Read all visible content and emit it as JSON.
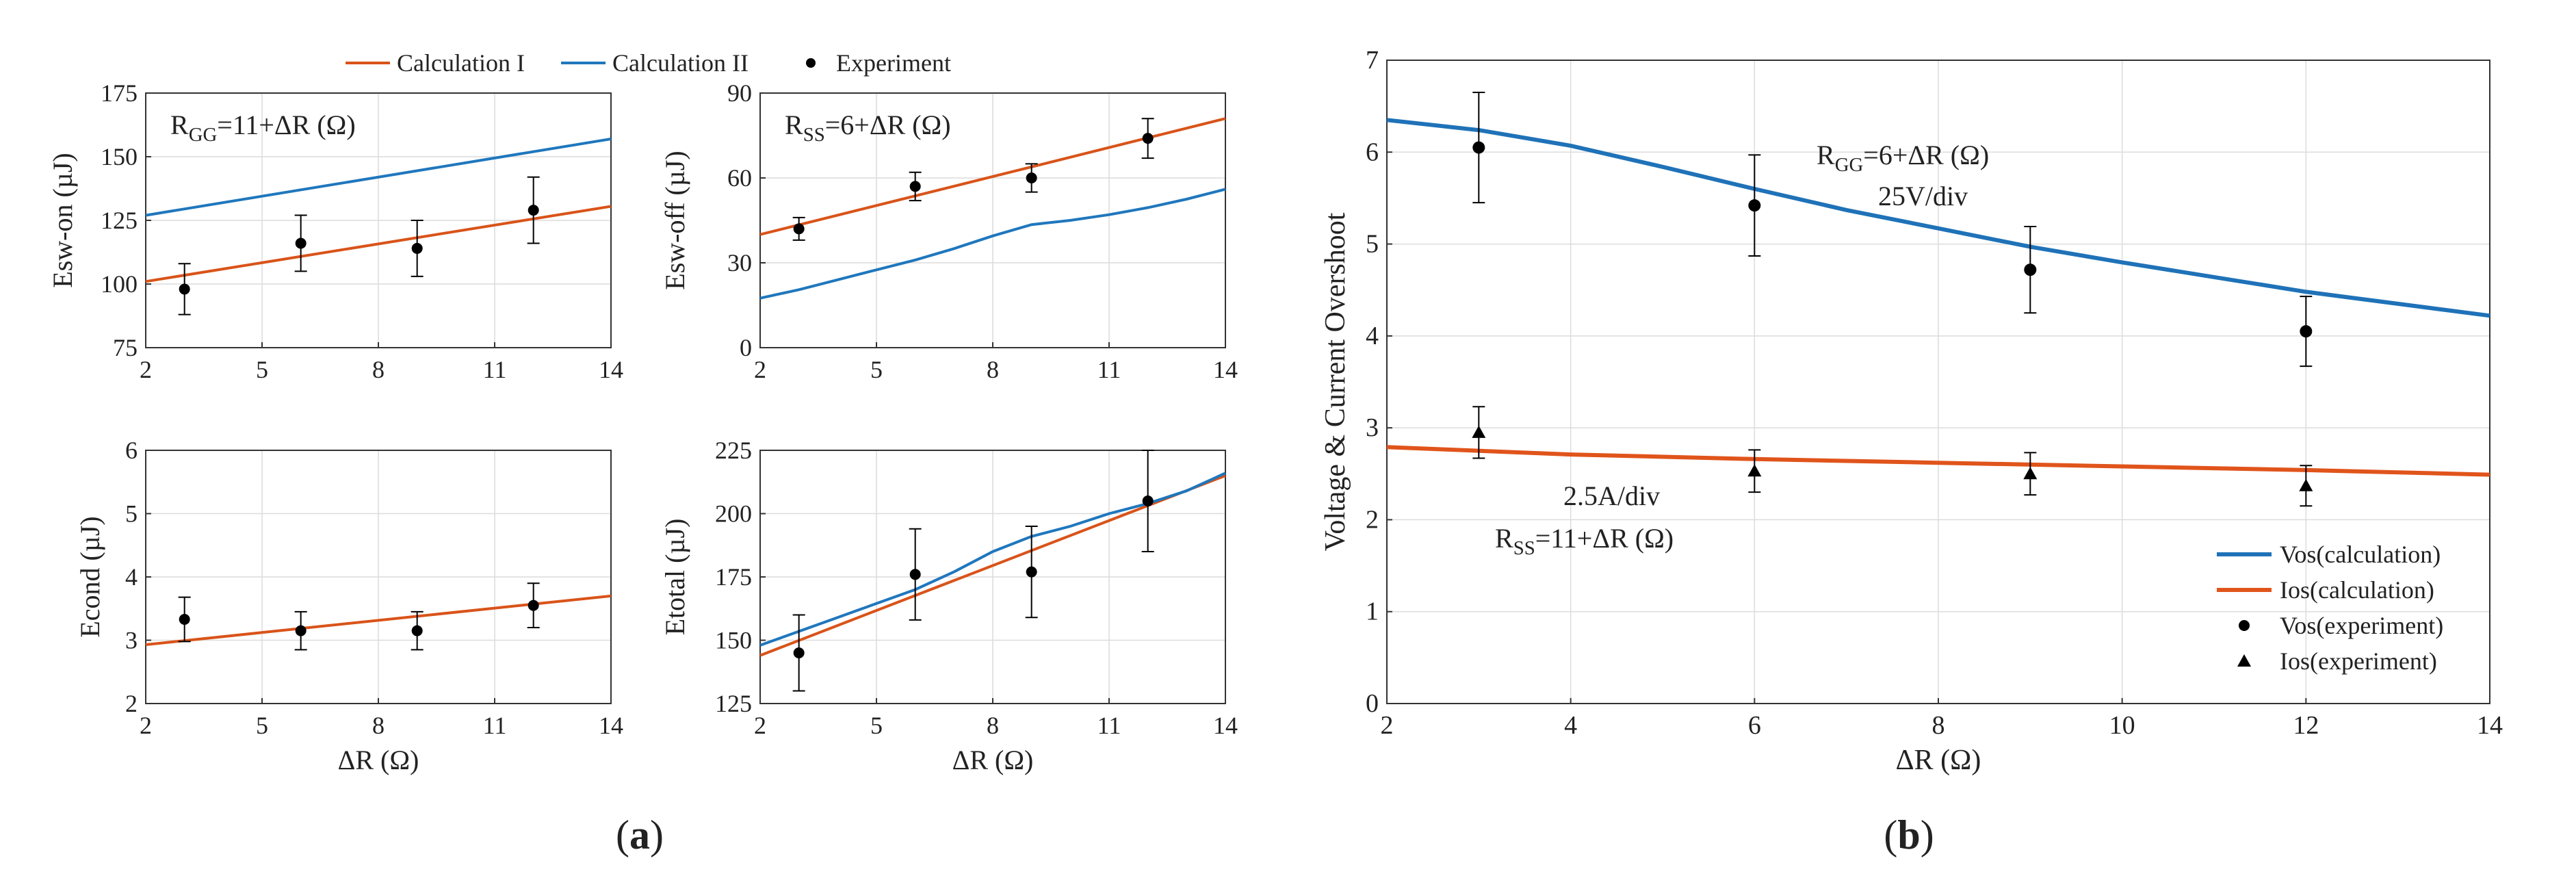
{
  "colors": {
    "calc1": "#d95319",
    "calc2": "#1f77bd",
    "vos_calc": "#1f72b8",
    "ios_calc": "#e0541b",
    "grid": "#dcdcdc",
    "axis": "#333333",
    "experiment": "#000000"
  },
  "legend_a": {
    "items": [
      "Calculation I",
      "Calculation II",
      "Experiment"
    ]
  },
  "captions": {
    "a": "(a)",
    "b": "(b)",
    "a_letter": "a",
    "b_letter": "b"
  },
  "chart_data": [
    {
      "id": "esw_on",
      "type": "line",
      "xlabel": "",
      "ylabel": "Esw-on (µJ)",
      "xlim": [
        2,
        14
      ],
      "ylim": [
        75,
        175
      ],
      "xticks": [
        "2",
        "5",
        "8",
        "11",
        "14"
      ],
      "yticks": [
        "75",
        "100",
        "125",
        "150",
        "175"
      ],
      "annotation": {
        "base": "R",
        "sub": "GG",
        "rest": "=11+ΔR (Ω)"
      },
      "series": [
        {
          "name": "Calculation I",
          "x": [
            2,
            14
          ],
          "y": [
            101,
            130.5
          ]
        },
        {
          "name": "Calculation II",
          "x": [
            2,
            14
          ],
          "y": [
            127,
            157
          ]
        },
        {
          "name": "Experiment",
          "x": [
            3,
            6,
            9,
            12
          ],
          "y": [
            98,
            116,
            114,
            129
          ],
          "err": [
            10,
            11,
            11,
            13
          ]
        }
      ]
    },
    {
      "id": "esw_off",
      "type": "line",
      "xlabel": "",
      "ylabel": "Esw-off (µJ)",
      "xlim": [
        2,
        14
      ],
      "ylim": [
        0,
        90
      ],
      "xticks": [
        "2",
        "5",
        "8",
        "11",
        "14"
      ],
      "yticks": [
        "0",
        "30",
        "60",
        "90"
      ],
      "annotation": {
        "base": "R",
        "sub": "SS",
        "rest": "=6+ΔR (Ω)"
      },
      "series": [
        {
          "name": "Calculation I",
          "x": [
            2,
            14
          ],
          "y": [
            40,
            81
          ]
        },
        {
          "name": "Calculation II",
          "x": [
            2,
            3,
            4,
            5,
            6,
            7,
            8,
            9,
            10,
            11,
            12,
            13,
            14
          ],
          "y": [
            17.5,
            20.5,
            24,
            27.5,
            31,
            35,
            39.5,
            43.5,
            45,
            47,
            49.5,
            52.5,
            56
          ]
        },
        {
          "name": "Experiment",
          "x": [
            3,
            6,
            9,
            12
          ],
          "y": [
            42,
            57,
            60,
            74
          ],
          "err": [
            4,
            5,
            5,
            7
          ]
        }
      ]
    },
    {
      "id": "econd",
      "type": "line",
      "xlabel": "ΔR (Ω)",
      "ylabel": "Econd (µJ)",
      "xlim": [
        2,
        14
      ],
      "ylim": [
        2,
        6
      ],
      "xticks": [
        "2",
        "5",
        "8",
        "11",
        "14"
      ],
      "yticks": [
        "2",
        "3",
        "4",
        "5",
        "6"
      ],
      "series": [
        {
          "name": "Calculation I",
          "x": [
            2,
            14
          ],
          "y": [
            2.93,
            3.7
          ]
        },
        {
          "name": "Experiment",
          "x": [
            3,
            6,
            9,
            12
          ],
          "y": [
            3.33,
            3.15,
            3.15,
            3.55
          ],
          "err": [
            0.35,
            0.3,
            0.3,
            0.35
          ]
        }
      ]
    },
    {
      "id": "etotal",
      "type": "line",
      "xlabel": "ΔR (Ω)",
      "ylabel": "Etotal (µJ)",
      "xlim": [
        2,
        14
      ],
      "ylim": [
        125,
        225
      ],
      "xticks": [
        "2",
        "5",
        "8",
        "11",
        "14"
      ],
      "yticks": [
        "125",
        "150",
        "175",
        "200",
        "225"
      ],
      "series": [
        {
          "name": "Calculation I",
          "x": [
            2,
            14
          ],
          "y": [
            144,
            215
          ]
        },
        {
          "name": "Calculation II",
          "x": [
            2,
            4,
            6,
            7,
            8,
            9,
            10,
            11,
            12,
            13,
            14
          ],
          "y": [
            148,
            159,
            170,
            177,
            185,
            191,
            195,
            200,
            204,
            209,
            216
          ]
        },
        {
          "name": "Experiment",
          "x": [
            3,
            6,
            9,
            12
          ],
          "y": [
            145,
            176,
            177,
            205
          ],
          "err": [
            15,
            18,
            18,
            20
          ]
        }
      ]
    },
    {
      "id": "overshoot",
      "type": "line",
      "xlabel": "ΔR (Ω)",
      "ylabel": "Voltage & Current Overshoot",
      "xlim": [
        2,
        14
      ],
      "ylim": [
        0,
        7
      ],
      "xticks": [
        "2",
        "4",
        "6",
        "8",
        "10",
        "12",
        "14"
      ],
      "yticks": [
        "0",
        "1",
        "2",
        "3",
        "4",
        "5",
        "6",
        "7"
      ],
      "annotations": [
        {
          "base": "R",
          "sub": "GG",
          "rest": "=6+ΔR (Ω)"
        },
        {
          "text": "25V/div"
        },
        {
          "text": "2.5A/div"
        },
        {
          "base": "R",
          "sub": "SS",
          "rest": "=11+ΔR (Ω)"
        }
      ],
      "legend": [
        "Vos(calculation)",
        "Ios(calculation)",
        "Vos(experiment)",
        "Ios(experiment)"
      ],
      "series": [
        {
          "name": "Vos(calculation)",
          "x": [
            2,
            3,
            4,
            5,
            6,
            7,
            8,
            9,
            10,
            11,
            12,
            13,
            14
          ],
          "y": [
            6.35,
            6.24,
            6.07,
            5.84,
            5.6,
            5.37,
            5.17,
            4.97,
            4.8,
            4.64,
            4.48,
            4.35,
            4.22
          ]
        },
        {
          "name": "Ios(calculation)",
          "x": [
            2,
            4,
            6,
            8,
            10,
            12,
            14
          ],
          "y": [
            2.79,
            2.71,
            2.66,
            2.62,
            2.58,
            2.54,
            2.49
          ]
        },
        {
          "name": "Vos(experiment)",
          "x": [
            3,
            6,
            9,
            12
          ],
          "y": [
            6.05,
            5.42,
            4.72,
            4.05
          ],
          "err": [
            0.6,
            0.55,
            0.47,
            0.38
          ]
        },
        {
          "name": "Ios(experiment)",
          "x": [
            3,
            6,
            9,
            12
          ],
          "y": [
            2.95,
            2.53,
            2.5,
            2.37
          ],
          "err": [
            0.28,
            0.23,
            0.23,
            0.22
          ]
        }
      ]
    }
  ]
}
